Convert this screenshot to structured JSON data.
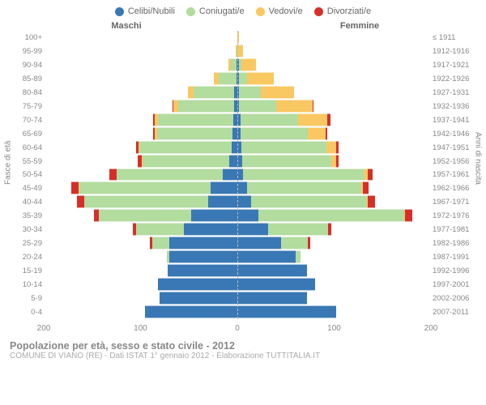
{
  "chart_type": "population_pyramid",
  "legend": {
    "items": [
      {
        "label": "Celibi/Nubili",
        "color": "#3a78b5"
      },
      {
        "label": "Coniugati/e",
        "color": "#b3dc9f"
      },
      {
        "label": "Vedovi/e",
        "color": "#fac862"
      },
      {
        "label": "Divorziati/e",
        "color": "#d62f2a"
      }
    ]
  },
  "headers": {
    "male": "Maschi",
    "female": "Femmine"
  },
  "axis_titles": {
    "left": "Fasce di età",
    "right": "Anni di nascita"
  },
  "x_ticks": [
    200,
    100,
    0,
    100,
    200
  ],
  "x_max": 200,
  "colors": {
    "grid_dash": "#bbbbbb",
    "background": "#ffffff",
    "tick_text": "#888888"
  },
  "age_labels": [
    "0-4",
    "5-9",
    "10-14",
    "15-19",
    "20-24",
    "25-29",
    "30-34",
    "35-39",
    "40-44",
    "45-49",
    "50-54",
    "55-59",
    "60-64",
    "65-69",
    "70-74",
    "75-79",
    "80-84",
    "85-89",
    "90-94",
    "95-99",
    "100+"
  ],
  "birth_labels": [
    "2007-2011",
    "2002-2006",
    "1997-2001",
    "1992-1996",
    "1987-1991",
    "1982-1986",
    "1977-1981",
    "1972-1976",
    "1967-1971",
    "1962-1966",
    "1957-1961",
    "1952-1956",
    "1947-1951",
    "1942-1946",
    "1937-1941",
    "1932-1936",
    "1927-1931",
    "1922-1926",
    "1917-1921",
    "1912-1916",
    "≤ 1911"
  ],
  "rows": [
    {
      "m": {
        "c": 95,
        "co": 0,
        "v": 0,
        "d": 0
      },
      "f": {
        "c": 102,
        "co": 0,
        "v": 0,
        "d": 0
      }
    },
    {
      "m": {
        "c": 80,
        "co": 0,
        "v": 0,
        "d": 0
      },
      "f": {
        "c": 72,
        "co": 0,
        "v": 0,
        "d": 0
      }
    },
    {
      "m": {
        "c": 82,
        "co": 0,
        "v": 0,
        "d": 0
      },
      "f": {
        "c": 80,
        "co": 0,
        "v": 0,
        "d": 0
      }
    },
    {
      "m": {
        "c": 72,
        "co": 0,
        "v": 0,
        "d": 0
      },
      "f": {
        "c": 72,
        "co": 0,
        "v": 0,
        "d": 0
      }
    },
    {
      "m": {
        "c": 70,
        "co": 3,
        "v": 0,
        "d": 0
      },
      "f": {
        "c": 60,
        "co": 5,
        "v": 0,
        "d": 0
      }
    },
    {
      "m": {
        "c": 70,
        "co": 18,
        "v": 0,
        "d": 2
      },
      "f": {
        "c": 45,
        "co": 28,
        "v": 0,
        "d": 2
      }
    },
    {
      "m": {
        "c": 55,
        "co": 50,
        "v": 0,
        "d": 3
      },
      "f": {
        "c": 32,
        "co": 62,
        "v": 0,
        "d": 3
      }
    },
    {
      "m": {
        "c": 48,
        "co": 95,
        "v": 0,
        "d": 5
      },
      "f": {
        "c": 22,
        "co": 150,
        "v": 1,
        "d": 8
      }
    },
    {
      "m": {
        "c": 30,
        "co": 128,
        "v": 0,
        "d": 8
      },
      "f": {
        "c": 14,
        "co": 120,
        "v": 1,
        "d": 7
      }
    },
    {
      "m": {
        "c": 28,
        "co": 135,
        "v": 1,
        "d": 8
      },
      "f": {
        "c": 10,
        "co": 118,
        "v": 2,
        "d": 6
      }
    },
    {
      "m": {
        "c": 15,
        "co": 110,
        "v": 0,
        "d": 7
      },
      "f": {
        "c": 6,
        "co": 125,
        "v": 4,
        "d": 5
      }
    },
    {
      "m": {
        "c": 8,
        "co": 90,
        "v": 1,
        "d": 4
      },
      "f": {
        "c": 5,
        "co": 92,
        "v": 5,
        "d": 3
      }
    },
    {
      "m": {
        "c": 6,
        "co": 95,
        "v": 1,
        "d": 3
      },
      "f": {
        "c": 4,
        "co": 88,
        "v": 10,
        "d": 3
      }
    },
    {
      "m": {
        "c": 5,
        "co": 78,
        "v": 2,
        "d": 2
      },
      "f": {
        "c": 3,
        "co": 70,
        "v": 18,
        "d": 2
      }
    },
    {
      "m": {
        "c": 4,
        "co": 78,
        "v": 3,
        "d": 2
      },
      "f": {
        "c": 3,
        "co": 60,
        "v": 30,
        "d": 3
      }
    },
    {
      "m": {
        "c": 3,
        "co": 58,
        "v": 5,
        "d": 1
      },
      "f": {
        "c": 2,
        "co": 38,
        "v": 38,
        "d": 1
      }
    },
    {
      "m": {
        "c": 3,
        "co": 42,
        "v": 6,
        "d": 0
      },
      "f": {
        "c": 2,
        "co": 22,
        "v": 35,
        "d": 0
      }
    },
    {
      "m": {
        "c": 1,
        "co": 18,
        "v": 5,
        "d": 0
      },
      "f": {
        "c": 2,
        "co": 8,
        "v": 28,
        "d": 0
      }
    },
    {
      "m": {
        "c": 1,
        "co": 6,
        "v": 2,
        "d": 0
      },
      "f": {
        "c": 2,
        "co": 2,
        "v": 15,
        "d": 0
      }
    },
    {
      "m": {
        "c": 0,
        "co": 1,
        "v": 1,
        "d": 0
      },
      "f": {
        "c": 0,
        "co": 0,
        "v": 6,
        "d": 0
      }
    },
    {
      "m": {
        "c": 0,
        "co": 0,
        "v": 0,
        "d": 0
      },
      "f": {
        "c": 0,
        "co": 0,
        "v": 2,
        "d": 0
      }
    }
  ],
  "footer": {
    "title": "Popolazione per età, sesso e stato civile - 2012",
    "subtitle": "COMUNE DI VIANO (RE) - Dati ISTAT 1° gennaio 2012 - Elaborazione TUTTITALIA.IT"
  }
}
